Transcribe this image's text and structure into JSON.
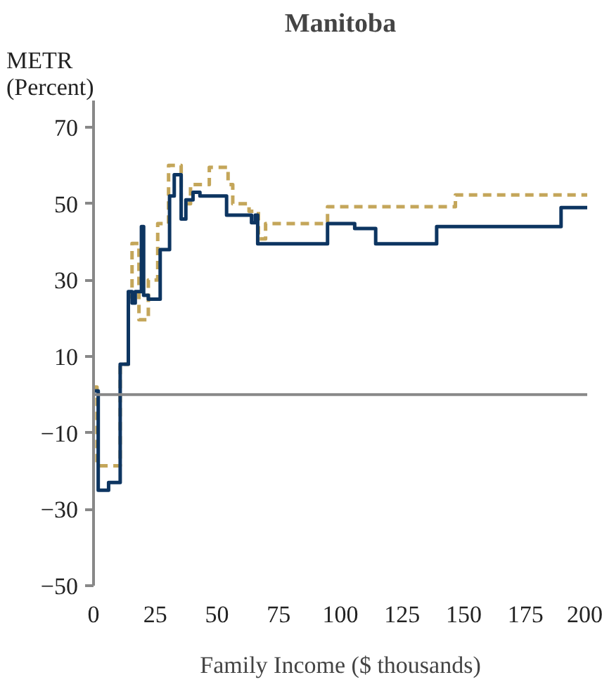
{
  "chart_data": {
    "type": "step",
    "title": "Manitoba",
    "xlabel": "Family Income ($ thousands)",
    "ylabel": "METR\n(Percent)",
    "xlim": [
      0,
      200
    ],
    "xticks": [
      0,
      25,
      50,
      75,
      100,
      125,
      150,
      175,
      200
    ],
    "ylim": [
      -50,
      77
    ],
    "yticks": [
      -50,
      -30,
      -10,
      10,
      30,
      50,
      70
    ],
    "grid": false,
    "series": [
      {
        "color": "#c4a65a",
        "line_style": "dashed",
        "x": [
          0,
          1.4,
          10.8,
          14.1,
          15.6,
          18.4,
          22.2,
          26,
          30.4,
          35.5,
          39.3,
          46.9,
          54.5,
          56.4,
          63,
          66.8,
          69.7,
          94.8,
          146.6,
          200
        ],
        "values": [
          2,
          -18.6,
          8,
          25.6,
          39.6,
          19.6,
          30,
          44.8,
          60,
          50,
          55,
          59.5,
          55,
          50,
          48,
          40.8,
          44.8,
          49.2,
          52.3,
          52.3
        ]
      },
      {
        "color": "#0d3561",
        "line_style": "solid",
        "x": [
          0,
          1.9,
          6.1,
          10.8,
          14.1,
          15.6,
          16.9,
          19.4,
          20.3,
          22.2,
          27,
          30.8,
          32.7,
          35.5,
          37.4,
          40.3,
          43.1,
          53.9,
          64,
          65.5,
          66.5,
          94.8,
          105.8,
          114.3,
          139,
          189.4,
          200
        ],
        "values": [
          1,
          -25,
          -23,
          8,
          27,
          24,
          27,
          44,
          26,
          25,
          38,
          52,
          57.6,
          46,
          51,
          53,
          52,
          47,
          45,
          47,
          39.5,
          44.8,
          43.5,
          39.5,
          44,
          49,
          49
        ]
      }
    ]
  }
}
